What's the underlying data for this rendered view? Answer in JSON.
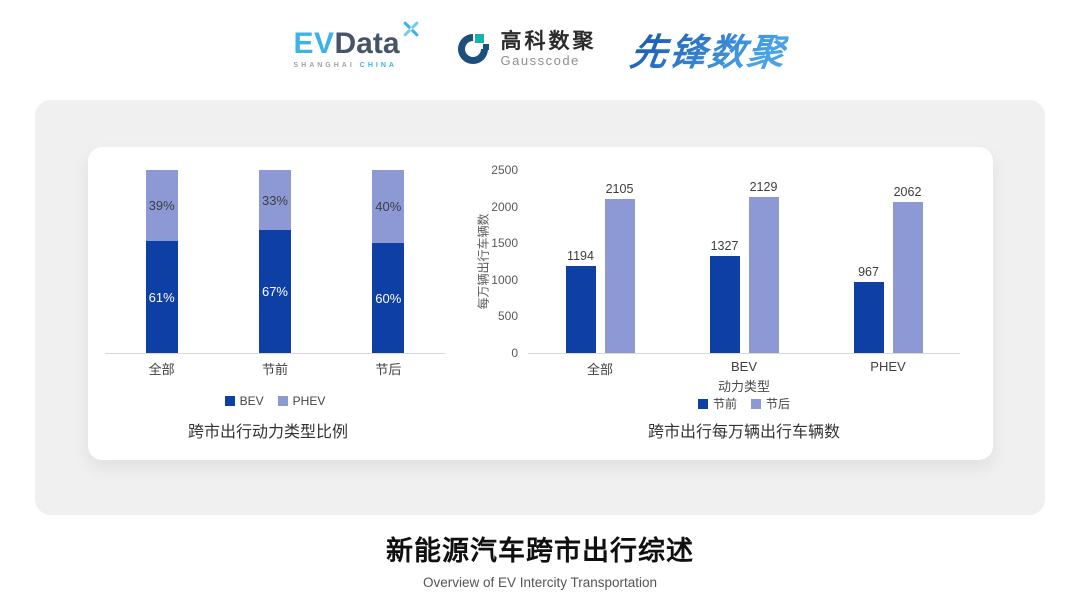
{
  "header": {
    "evdata": {
      "ev": "EV",
      "data": "Data",
      "sub1": "SHANGHAI",
      "sub2": "CHINA"
    },
    "gausscode": {
      "cn": "高科数聚",
      "en": "Gausscode"
    },
    "pioneer": {
      "text": "先锋数聚"
    }
  },
  "colors": {
    "bar_dark_blue": "#0d3fa4",
    "bar_light_periwinkle": "#8d99d4",
    "panel_gray": "#f0f0f1",
    "axis_gray": "#d8d8d8"
  },
  "chart_data": [
    {
      "type": "bar",
      "subtype": "stacked-100-percent",
      "title": "跨市出行动力类型比例",
      "categories": [
        "全部",
        "节前",
        "节后"
      ],
      "series": [
        {
          "name": "BEV",
          "color": "#0d3fa4",
          "values": [
            61,
            67,
            60
          ],
          "labels": [
            "61%",
            "67%",
            "60%"
          ]
        },
        {
          "name": "PHEV",
          "color": "#8d99d4",
          "values": [
            39,
            33,
            40
          ],
          "labels": [
            "39%",
            "33%",
            "40%"
          ]
        }
      ],
      "ylim": [
        0,
        100
      ],
      "grid": false,
      "legend_position": "bottom"
    },
    {
      "type": "bar",
      "subtype": "grouped",
      "title": "跨市出行每万辆出行车辆数",
      "categories": [
        "全部",
        "BEV",
        "PHEV"
      ],
      "series": [
        {
          "name": "节前",
          "color": "#0d3fa4",
          "values": [
            1194,
            1327,
            967
          ]
        },
        {
          "name": "节后",
          "color": "#8d99d4",
          "values": [
            2105,
            2129,
            2062
          ]
        }
      ],
      "xlabel": "动力类型",
      "ylabel": "每万辆出行车辆数",
      "ylim": [
        0,
        2500
      ],
      "yticks": [
        0,
        500,
        1000,
        1500,
        2000,
        2500
      ],
      "grid": false,
      "legend_position": "bottom"
    }
  ],
  "footer": {
    "title": "新能源汽车跨市出行综述",
    "subtitle": "Overview of EV Intercity Transportation"
  }
}
